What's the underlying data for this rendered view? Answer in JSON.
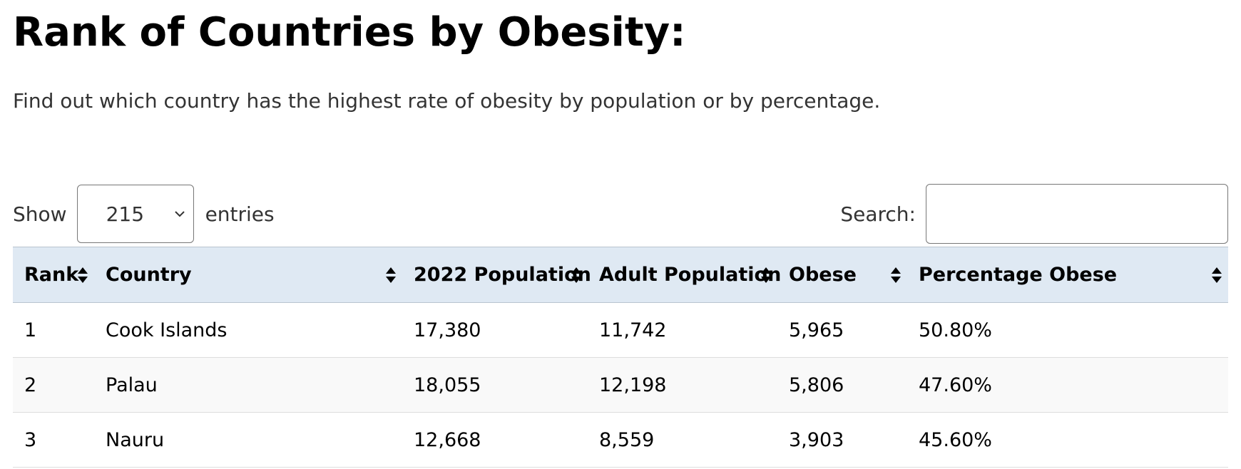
{
  "header": {
    "title": "Rank of Countries by Obesity:",
    "subtitle": "Find out which country has the highest rate of obesity by population or by percentage."
  },
  "length_control": {
    "show_label": "Show",
    "selected_value": "215",
    "entries_label": "entries"
  },
  "search": {
    "label": "Search:",
    "value": "",
    "placeholder": ""
  },
  "table": {
    "columns": [
      {
        "label": "Rank"
      },
      {
        "label": "Country"
      },
      {
        "label": "2022 Population"
      },
      {
        "label": "Adult Population"
      },
      {
        "label": "Obese"
      },
      {
        "label": "Percentage Obese"
      }
    ],
    "rows": [
      {
        "rank": "1",
        "country": "Cook Islands",
        "population_2022": "17,380",
        "adult_population": "11,742",
        "obese": "5,965",
        "percentage_obese": "50.80%"
      },
      {
        "rank": "2",
        "country": "Palau",
        "population_2022": "18,055",
        "adult_population": "12,198",
        "obese": "5,806",
        "percentage_obese": "47.60%"
      },
      {
        "rank": "3",
        "country": "Nauru",
        "population_2022": "12,668",
        "adult_population": "8,559",
        "obese": "3,903",
        "percentage_obese": "45.60%"
      }
    ]
  },
  "icons": {
    "sort": "sort-both-icon",
    "dropdown": "chevron-down-icon"
  },
  "colors": {
    "header_background": "#dfe9f3",
    "even_row_background": "#f9f9f9",
    "text": "#000000",
    "muted_text": "#333333"
  }
}
